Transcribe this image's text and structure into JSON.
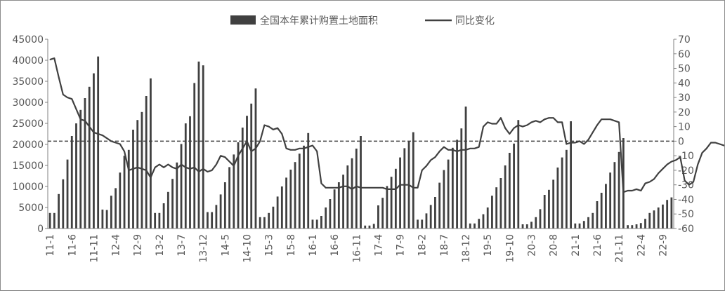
{
  "chart_data": {
    "type": "bar+line",
    "legend": {
      "placement": "top",
      "entries": [
        {
          "label": "全国本年累计购置土地面积",
          "kind": "bar",
          "color": "#404040"
        },
        {
          "label": "同比变化",
          "kind": "line",
          "color": "#404040"
        }
      ]
    },
    "y_left": {
      "range": [
        0,
        45000
      ],
      "ticks": [
        "0",
        "5000",
        "10000",
        "15000",
        "20000",
        "25000",
        "30000",
        "35000",
        "40000",
        "45000"
      ]
    },
    "y_right": {
      "range": [
        -60,
        70
      ],
      "ticks": [
        "-60",
        "-50",
        "-40",
        "-30",
        "-20",
        "-10",
        "0",
        "10",
        "20",
        "30",
        "40",
        "50",
        "60",
        "70"
      ]
    },
    "x_labels": [
      "11-1",
      "11-6",
      "11-11",
      "12-4",
      "12-9",
      "13-2",
      "13-7",
      "13-12",
      "14-5",
      "14-10",
      "15-3",
      "15-8",
      "16-1",
      "16-6",
      "16-11",
      "17-4",
      "17-9",
      "18-2",
      "18-7",
      "18-12",
      "19-5",
      "19-10",
      "20-3",
      "20-8",
      "21-1",
      "21-6",
      "21-11",
      "22-4",
      "22-9"
    ],
    "reference_line": {
      "axis": "right",
      "value": 0,
      "style": "dashed"
    },
    "grid": false,
    "series": [
      {
        "name": "全国本年累计购置土地面积",
        "axis": "left",
        "type": "bar",
        "values": [
          3700,
          3700,
          8200,
          11700,
          16400,
          22000,
          25000,
          28200,
          31000,
          33700,
          36900,
          40900,
          4500,
          4400,
          7800,
          9600,
          13300,
          17300,
          18700,
          23500,
          25800,
          27700,
          31500,
          35700,
          3700,
          3700,
          6000,
          8700,
          11800,
          15700,
          20100,
          25000,
          26700,
          34600,
          39700,
          38800,
          3900,
          3900,
          5600,
          8100,
          11000,
          14600,
          17600,
          20500,
          24000,
          26800,
          29700,
          33300,
          2700,
          2700,
          3700,
          5200,
          7600,
          10000,
          12100,
          14000,
          15800,
          17800,
          19700,
          22700,
          2100,
          2100,
          3000,
          5000,
          7000,
          9300,
          11000,
          12800,
          15000,
          16700,
          19000,
          22000,
          700,
          700,
          1100,
          5500,
          7300,
          10100,
          12300,
          14200,
          16900,
          19100,
          20800,
          22900,
          2100,
          2100,
          3600,
          5600,
          7500,
          10900,
          13900,
          16400,
          19200,
          21100,
          23800,
          29000,
          1200,
          1200,
          2300,
          3400,
          5000,
          7800,
          9800,
          12000,
          15000,
          18000,
          20200,
          25800,
          1000,
          1000,
          1600,
          2700,
          4600,
          8000,
          9200,
          11600,
          14500,
          16900,
          18700,
          25500,
          1200,
          1200,
          1800,
          2700,
          3700,
          6500,
          8500,
          10600,
          13300,
          15800,
          18200,
          21500,
          800,
          800,
          1000,
          1300,
          2300,
          3700,
          4300,
          5000,
          5700,
          6800,
          7400
        ],
        "color": "#404040"
      },
      {
        "name": "同比变化",
        "axis": "right",
        "type": "line",
        "values": [
          56,
          57,
          44,
          32,
          30,
          29,
          22,
          15,
          14,
          10,
          6,
          5,
          4,
          2,
          0,
          -1,
          -2,
          -7,
          -20,
          -19,
          -18,
          -19,
          -20,
          -25,
          -18,
          -16,
          -18,
          -16,
          -18,
          -19,
          -16,
          -18,
          -19,
          -18,
          -21,
          -19,
          -21,
          -20,
          -16,
          -10,
          -11,
          -14,
          -17,
          -10,
          -5,
          0,
          -7,
          -5,
          0,
          11,
          10,
          8,
          9,
          5,
          -5,
          -6,
          -6,
          -5,
          -5,
          -4,
          -3,
          -7,
          -29,
          -32,
          -32,
          -32,
          -32,
          -31,
          -31,
          -33,
          -31,
          -32,
          -32,
          -32,
          -32,
          -32,
          -32,
          -33,
          -33,
          -33,
          -30,
          -30,
          -30,
          -32,
          -32,
          -20,
          -17,
          -13,
          -11,
          -7,
          -4,
          -6,
          -6,
          -7,
          -6,
          -6,
          -5,
          -5,
          -4,
          10,
          13,
          12,
          12,
          16,
          9,
          5,
          9,
          11,
          10,
          11,
          13,
          14,
          13,
          15,
          16,
          16,
          13,
          13,
          -2,
          -1,
          -1,
          0,
          -2,
          1,
          6,
          11,
          15,
          15,
          15,
          14,
          13,
          -35,
          -34,
          -34,
          -33,
          -34,
          -29,
          -28,
          -26,
          -22,
          -19,
          -16,
          -14,
          -13,
          -11,
          -27,
          -30,
          -28,
          -16,
          -8,
          -5,
          -1,
          -1,
          -2,
          -3,
          -4,
          -6,
          8,
          33,
          32,
          26,
          12,
          -4,
          -9,
          -12,
          -11,
          -10,
          -10,
          -11,
          -12,
          -14,
          -42,
          -42,
          -41,
          -45,
          -47,
          -47,
          -47,
          -48,
          -50,
          -53
        ]
      }
    ]
  }
}
